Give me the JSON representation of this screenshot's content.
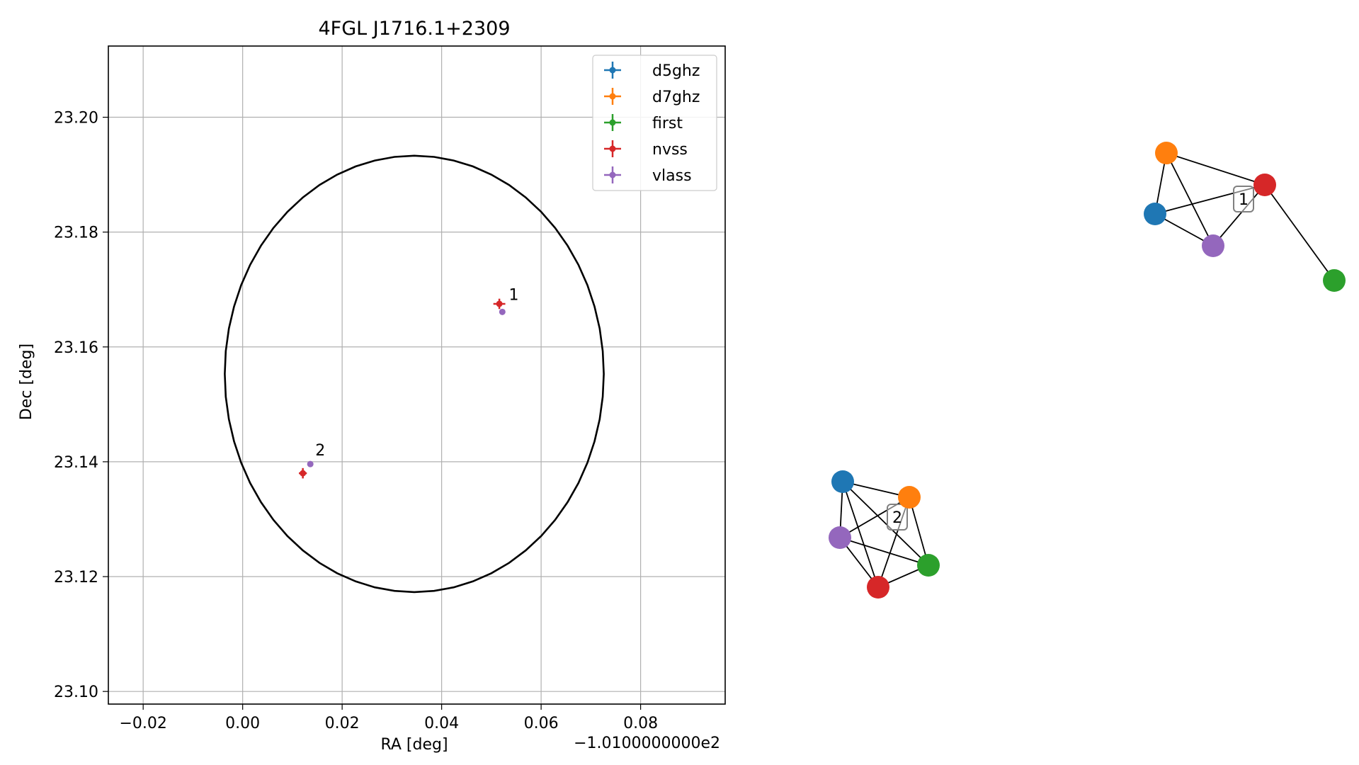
{
  "chart_data": [
    {
      "type": "scatter",
      "title": "4FGL J1716.1+2309",
      "xlabel": "RA [deg]",
      "ylabel": "Dec [deg]",
      "x_offset_label": "−1.0100000000e2",
      "xlim": [
        -0.027,
        0.097
      ],
      "ylim": [
        23.0978,
        23.2124
      ],
      "x_ticks": [
        -0.02,
        0.0,
        0.02,
        0.04,
        0.06,
        0.08
      ],
      "x_tick_labels": [
        "−0.02",
        "0.00",
        "0.02",
        "0.04",
        "0.06",
        "0.08"
      ],
      "y_ticks": [
        23.1,
        23.12,
        23.14,
        23.16,
        23.18,
        23.2
      ],
      "y_tick_labels": [
        "23.10",
        "23.12",
        "23.14",
        "23.16",
        "23.18",
        "23.20"
      ],
      "grid": true,
      "legend_position": "top-right",
      "series": [
        {
          "name": "d5ghz",
          "color": "#1f77b4",
          "points": []
        },
        {
          "name": "d7ghz",
          "color": "#ff7f0e",
          "points": []
        },
        {
          "name": "first",
          "color": "#2ca02c",
          "points": []
        },
        {
          "name": "nvss",
          "color": "#d62728",
          "points": [
            {
              "x": 0.0516,
              "y": 23.1675,
              "xerr": 0.0012,
              "yerr": 0.0009
            },
            {
              "x": 0.0121,
              "y": 23.138,
              "xerr": 0.0008,
              "yerr": 0.0009
            }
          ]
        },
        {
          "name": "vlass",
          "color": "#9467bd",
          "points": [
            {
              "x": 0.0522,
              "y": 23.1661,
              "xerr": 0.0003,
              "yerr": 0.0003
            },
            {
              "x": 0.0136,
              "y": 23.1396,
              "xerr": 0.0003,
              "yerr": 0.0003
            }
          ]
        }
      ],
      "annotations": [
        {
          "text": "1",
          "x": 0.0535,
          "y": 23.1682
        },
        {
          "text": "2",
          "x": 0.0146,
          "y": 23.1411
        }
      ],
      "ellipse": {
        "center_x": 0.0345,
        "center_y": 23.1553,
        "semi_axis_x": 0.0381,
        "semi_axis_y": 0.038,
        "color": "#000000"
      }
    },
    {
      "type": "network",
      "clusters": [
        {
          "label": "1",
          "nodes": [
            {
              "id": "d5ghz",
              "color": "#1f77b4"
            },
            {
              "id": "d7ghz",
              "color": "#ff7f0e"
            },
            {
              "id": "nvss",
              "color": "#d62728"
            },
            {
              "id": "vlass",
              "color": "#9467bd"
            },
            {
              "id": "first",
              "color": "#2ca02c"
            }
          ],
          "edges": [
            [
              "d5ghz",
              "d7ghz"
            ],
            [
              "d5ghz",
              "nvss"
            ],
            [
              "d5ghz",
              "vlass"
            ],
            [
              "d7ghz",
              "nvss"
            ],
            [
              "d7ghz",
              "vlass"
            ],
            [
              "nvss",
              "vlass"
            ],
            [
              "nvss",
              "first"
            ]
          ]
        },
        {
          "label": "2",
          "nodes": [
            {
              "id": "d5ghz",
              "color": "#1f77b4"
            },
            {
              "id": "d7ghz",
              "color": "#ff7f0e"
            },
            {
              "id": "vlass",
              "color": "#9467bd"
            },
            {
              "id": "first",
              "color": "#2ca02c"
            },
            {
              "id": "nvss",
              "color": "#d62728"
            }
          ],
          "edges": [
            [
              "d5ghz",
              "d7ghz"
            ],
            [
              "d5ghz",
              "vlass"
            ],
            [
              "d5ghz",
              "nvss"
            ],
            [
              "d5ghz",
              "first"
            ],
            [
              "d7ghz",
              "nvss"
            ],
            [
              "d7ghz",
              "first"
            ],
            [
              "vlass",
              "first"
            ],
            [
              "vlass",
              "nvss"
            ],
            [
              "nvss",
              "first"
            ],
            [
              "vlass",
              "d7ghz"
            ]
          ]
        }
      ]
    }
  ]
}
